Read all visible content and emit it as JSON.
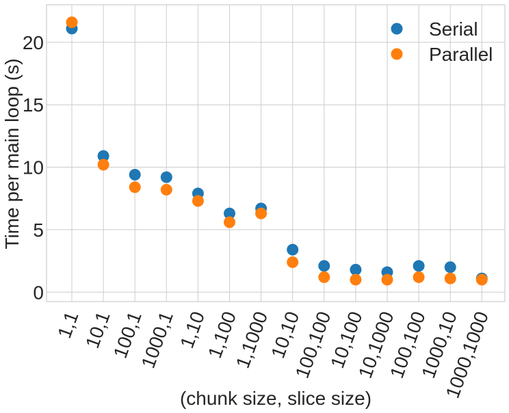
{
  "chart_data": {
    "type": "scatter",
    "title": "",
    "xlabel": "(chunk size, slice size)",
    "ylabel": "Time per main loop (s)",
    "categories": [
      "1,1",
      "10,1",
      "100,1",
      "1000,1",
      "1,10",
      "1,100",
      "1,1000",
      "10,10",
      "100,100",
      "10,100",
      "10,1000",
      "100,100",
      "1000,10",
      "1000,1000"
    ],
    "ylim": [
      -0.75,
      23
    ],
    "yticks": [
      "0",
      "5",
      "10",
      "15",
      "20"
    ],
    "grid": true,
    "legend_position": "top-right",
    "series": [
      {
        "name": "Serial",
        "color": "#1f77b4",
        "values": [
          21.1,
          10.9,
          9.4,
          9.2,
          7.9,
          6.3,
          6.7,
          3.4,
          2.1,
          1.8,
          1.6,
          2.1,
          2.0,
          1.1
        ]
      },
      {
        "name": "Parallel",
        "color": "#ff7f0e",
        "values": [
          21.6,
          10.2,
          8.4,
          8.2,
          7.3,
          5.6,
          6.3,
          2.4,
          1.2,
          1.0,
          1.0,
          1.2,
          1.1,
          1.0
        ]
      }
    ]
  }
}
